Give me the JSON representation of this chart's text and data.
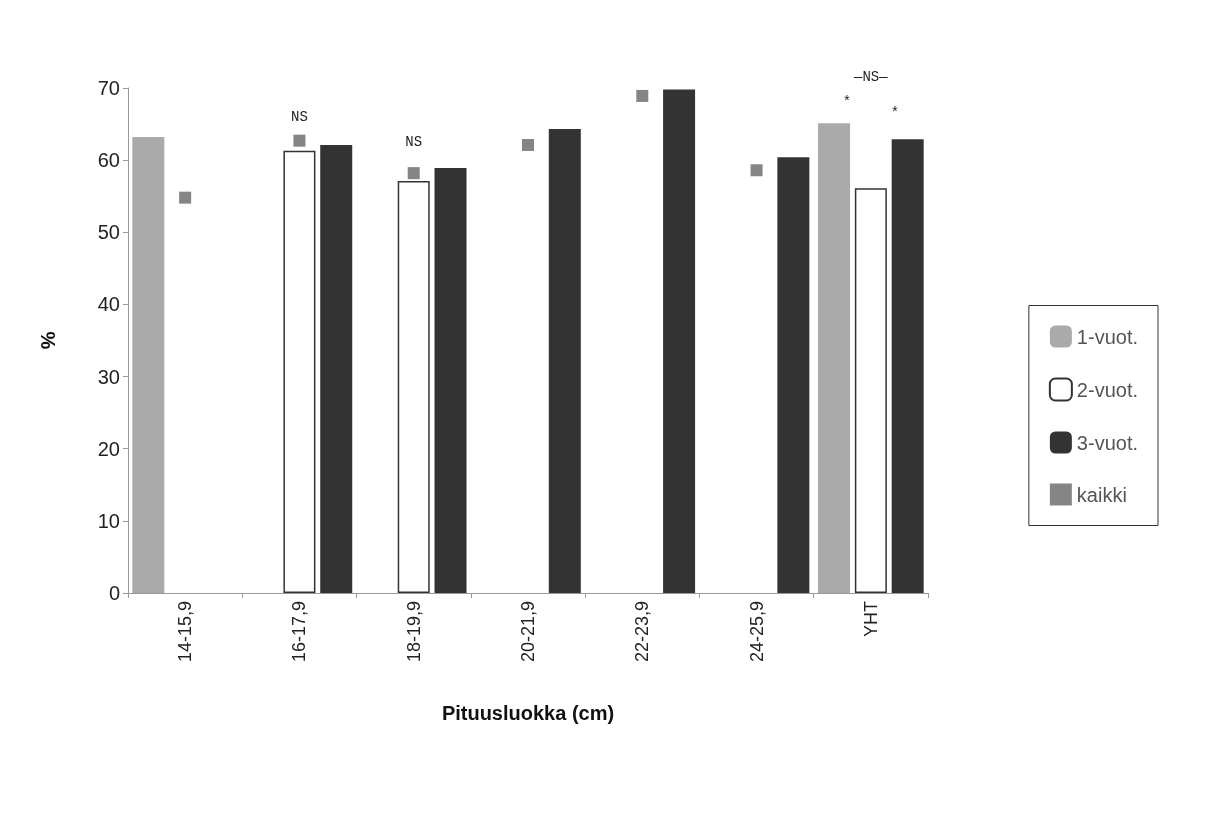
{
  "chart_data": {
    "type": "bar",
    "xlabel": "Pituusluokka (cm)",
    "ylabel": "%",
    "categories": [
      "14-15,9",
      "16-17,9",
      "18-19,9",
      "20-21,9",
      "22-23,9",
      "24-25,9",
      "YHT"
    ],
    "series": [
      {
        "name": "1-vuot.",
        "color": "#aaaaaa",
        "values": [
          63.2,
          null,
          null,
          null,
          null,
          null,
          65.1
        ]
      },
      {
        "name": "2-vuot.",
        "color": "#ffffff",
        "values": [
          null,
          61.3,
          57.1,
          null,
          null,
          null,
          56.1
        ]
      },
      {
        "name": "3-vuot.",
        "color": "#333333",
        "values": [
          null,
          62.1,
          58.9,
          64.3,
          69.8,
          60.4,
          62.9
        ]
      },
      {
        "name": "kaikki",
        "type": "scatter",
        "marker": "square",
        "color": "#666666",
        "values": [
          54.8,
          62.7,
          58.2,
          62.1,
          68.9,
          58.6,
          null
        ]
      }
    ],
    "ylim": [
      0,
      70
    ],
    "yticks": [
      0,
      10,
      20,
      30,
      40,
      50,
      60,
      70
    ],
    "grid": false,
    "legend": "right",
    "annotations": [
      "NS",
      "NS",
      "—NS—",
      "*",
      "*"
    ]
  }
}
